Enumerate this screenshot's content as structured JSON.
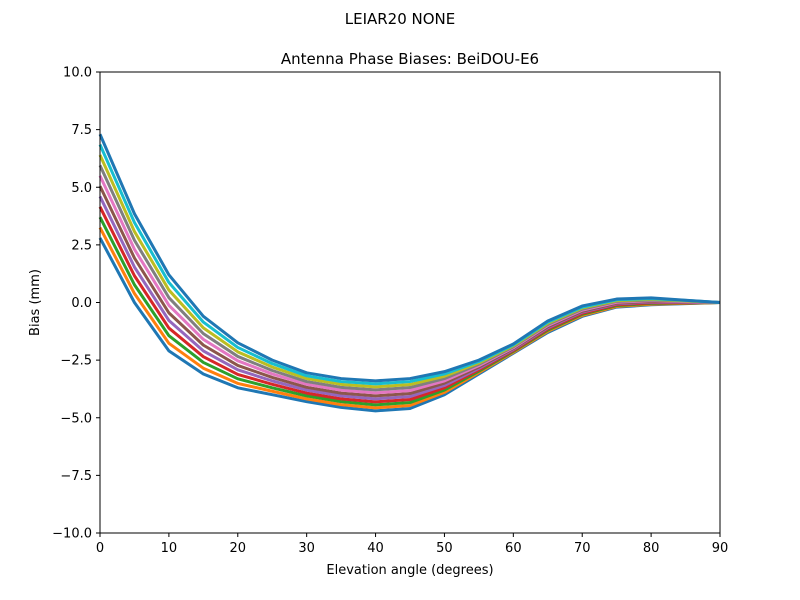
{
  "suptitle": "LEIAR20          NONE",
  "chart_data": {
    "type": "line",
    "title": "Antenna Phase Biases: BeiDOU-E6",
    "xlabel": "Elevation angle (degrees)",
    "ylabel": "Bias (mm)",
    "xlim": [
      0,
      90
    ],
    "ylim": [
      -10,
      10
    ],
    "xticks": [
      "0",
      "10",
      "20",
      "30",
      "40",
      "50",
      "60",
      "70",
      "80",
      "90"
    ],
    "yticks": [
      "10.0",
      "7.5",
      "5.0",
      "2.5",
      "0.0",
      "−2.5",
      "−5.0",
      "−7.5",
      "−10.0"
    ],
    "grid": false,
    "colors": [
      "#1f77b4",
      "#ff7f0e",
      "#2ca02c",
      "#d62728",
      "#9467bd",
      "#8c564b",
      "#e377c2",
      "#7f7f7f",
      "#bcbd22",
      "#17becf"
    ],
    "x": [
      0,
      5,
      10,
      15,
      20,
      25,
      30,
      35,
      40,
      45,
      50,
      55,
      60,
      65,
      70,
      75,
      80,
      85,
      90
    ],
    "series": [
      {
        "values": [
          2.8,
          0.0,
          -2.1,
          -3.1,
          -3.7,
          -4.0,
          -4.3,
          -4.55,
          -4.7,
          -4.6,
          -4.0,
          -3.1,
          -2.2,
          -1.3,
          -0.6,
          -0.2,
          -0.1,
          -0.05,
          0
        ]
      },
      {
        "values": [
          3.25,
          0.39,
          -1.77,
          -2.85,
          -3.51,
          -3.85,
          -4.18,
          -4.43,
          -4.57,
          -4.47,
          -3.9,
          -3.04,
          -2.16,
          -1.25,
          -0.56,
          -0.17,
          -0.07,
          -0.04,
          0
        ]
      },
      {
        "values": [
          3.7,
          0.77,
          -1.44,
          -2.6,
          -3.31,
          -3.7,
          -4.05,
          -4.3,
          -4.44,
          -4.34,
          -3.8,
          -2.98,
          -2.12,
          -1.2,
          -0.51,
          -0.13,
          -0.04,
          -0.02,
          0
        ]
      },
      {
        "values": [
          4.15,
          1.16,
          -1.11,
          -2.35,
          -3.12,
          -3.55,
          -3.93,
          -4.18,
          -4.31,
          -4.21,
          -3.7,
          -2.92,
          -2.08,
          -1.15,
          -0.47,
          -0.1,
          -0.01,
          -0.01,
          0
        ]
      },
      {
        "values": [
          4.6,
          1.54,
          -0.78,
          -2.1,
          -2.92,
          -3.4,
          -3.8,
          -4.05,
          -4.18,
          -4.08,
          -3.6,
          -2.86,
          -2.04,
          -1.1,
          -0.42,
          -0.06,
          0.02,
          0.01,
          0
        ]
      },
      {
        "values": [
          5.05,
          1.93,
          -0.45,
          -1.85,
          -2.73,
          -3.25,
          -3.68,
          -3.93,
          -4.05,
          -3.95,
          -3.5,
          -2.8,
          -2.0,
          -1.05,
          -0.38,
          -0.03,
          0.05,
          0.03,
          0
        ]
      },
      {
        "values": [
          5.5,
          2.31,
          -0.12,
          -1.6,
          -2.53,
          -3.1,
          -3.55,
          -3.8,
          -3.92,
          -3.82,
          -3.4,
          -2.74,
          -1.96,
          -1.0,
          -0.33,
          0.01,
          0.08,
          0.04,
          0
        ]
      },
      {
        "values": [
          5.95,
          2.7,
          0.21,
          -1.35,
          -2.34,
          -2.95,
          -3.43,
          -3.68,
          -3.79,
          -3.69,
          -3.3,
          -2.68,
          -1.92,
          -0.95,
          -0.29,
          0.05,
          0.11,
          0.06,
          0
        ]
      },
      {
        "values": [
          6.4,
          3.08,
          0.54,
          -1.1,
          -2.14,
          -2.8,
          -3.3,
          -3.55,
          -3.66,
          -3.56,
          -3.2,
          -2.62,
          -1.88,
          -0.9,
          -0.24,
          0.08,
          0.14,
          0.07,
          0
        ]
      },
      {
        "values": [
          6.85,
          3.47,
          0.87,
          -0.85,
          -1.95,
          -2.65,
          -3.18,
          -3.43,
          -3.53,
          -3.43,
          -3.1,
          -2.56,
          -1.84,
          -0.85,
          -0.2,
          0.12,
          0.17,
          0.09,
          0
        ]
      },
      {
        "values": [
          7.3,
          3.85,
          1.2,
          -0.6,
          -1.75,
          -2.5,
          -3.05,
          -3.3,
          -3.4,
          -3.3,
          -3.0,
          -2.5,
          -1.8,
          -0.8,
          -0.15,
          0.15,
          0.2,
          0.1,
          0
        ]
      }
    ]
  }
}
